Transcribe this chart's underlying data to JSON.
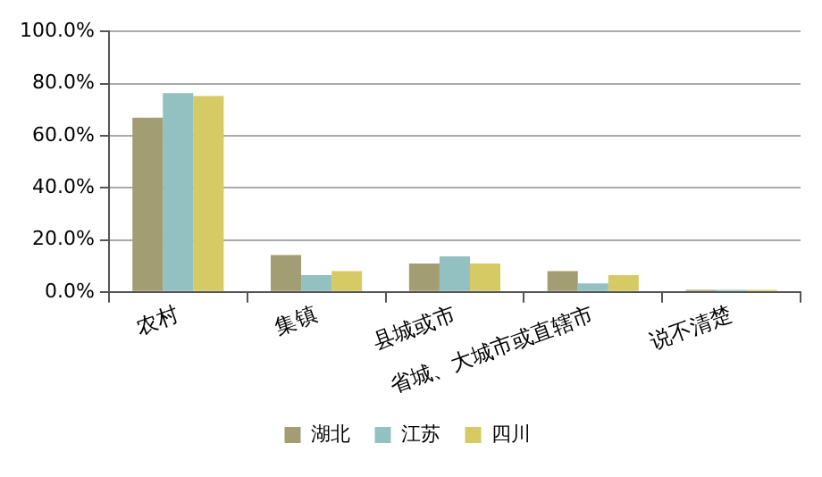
{
  "chart_data": {
    "type": "bar",
    "categories": [
      "农村",
      "集镇",
      "县城或市",
      "省城、大城市或直辖市",
      "说不清楚"
    ],
    "series": [
      {
        "name": "湖北",
        "color": "#a39d74",
        "values": [
          66.9,
          14.2,
          10.9,
          8.0,
          0.8
        ]
      },
      {
        "name": "江苏",
        "color": "#93c0c0",
        "values": [
          76.3,
          6.5,
          13.7,
          3.3,
          0.8
        ]
      },
      {
        "name": "四川",
        "color": "#d6ca64",
        "values": [
          75.2,
          8.0,
          10.9,
          6.5,
          0.8
        ]
      }
    ],
    "ylim": [
      0,
      100
    ],
    "yticks": [
      {
        "value": 0,
        "label": "0.0%"
      },
      {
        "value": 20,
        "label": "20.0%"
      },
      {
        "value": 40,
        "label": "40.0%"
      },
      {
        "value": 60,
        "label": "60.0%"
      },
      {
        "value": 80,
        "label": "80.0%"
      },
      {
        "value": 100,
        "label": "100.0%"
      }
    ],
    "grid": "y",
    "legend": "bottom"
  }
}
